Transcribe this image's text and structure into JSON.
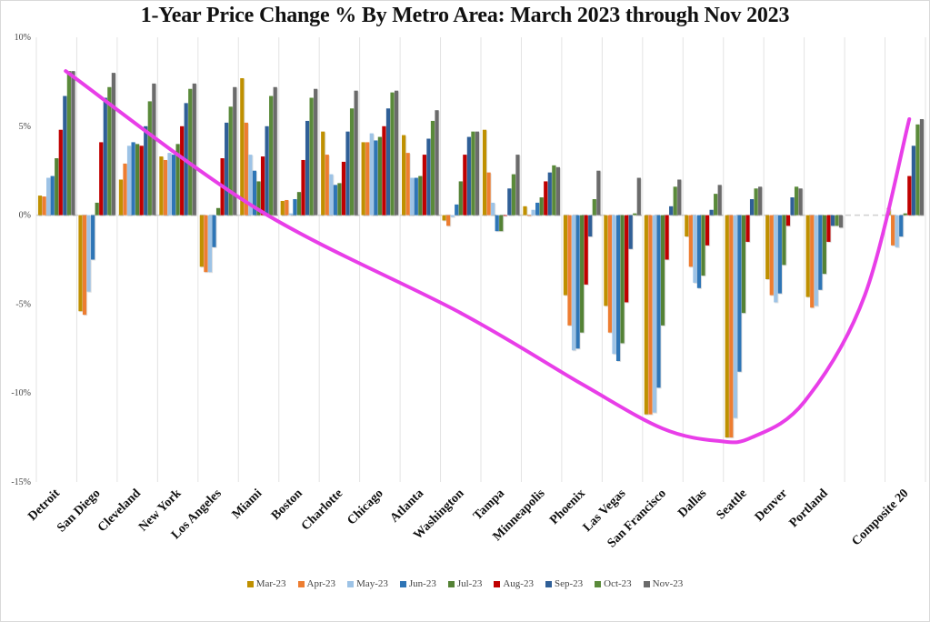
{
  "chart_data": {
    "type": "bar",
    "title": "1-Year Price Change % By Metro Area: March 2023 through Nov 2023",
    "xlabel": "",
    "ylabel": "",
    "ylim": [
      -15,
      10
    ],
    "yticks": [
      10,
      5,
      0,
      -5,
      -10,
      -15
    ],
    "ytick_labels": [
      "10%",
      "5%",
      "0%",
      "-5%",
      "-10%",
      "-15%"
    ],
    "grid": "vertical category separators",
    "legend_position": "bottom",
    "categories": [
      "Detroit",
      "San Diego",
      "Cleveland",
      "New York",
      "Los Angeles",
      "Miami",
      "Boston",
      "Charlotte",
      "Chicago",
      "Atlanta",
      "Washington",
      "Tampa",
      "Minneapolis",
      "Phoenix",
      "Las Vegas",
      "San Francisco",
      "Dallas",
      "Seattle",
      "Denver",
      "Portland",
      "",
      "Composite 20"
    ],
    "series": [
      {
        "name": "Mar-23",
        "color": "#bf9000",
        "values": [
          1.1,
          -5.4,
          2.0,
          3.3,
          -2.9,
          7.7,
          0.8,
          4.7,
          4.1,
          4.5,
          -0.3,
          4.8,
          0.5,
          -4.5,
          -5.1,
          -11.2,
          -1.2,
          -12.5,
          -3.6,
          -4.6,
          null,
          0.4
        ]
      },
      {
        "name": "Apr-23",
        "color": "#ed7d31",
        "values": [
          1.05,
          -5.6,
          2.9,
          3.1,
          -3.2,
          5.2,
          0.85,
          3.4,
          4.1,
          3.5,
          -0.6,
          2.4,
          0.0,
          -6.2,
          -6.6,
          -11.2,
          -2.9,
          -12.5,
          -4.5,
          -5.2,
          null,
          -1.7
        ]
      },
      {
        "name": "May-23",
        "color": "#9dc3e6",
        "values": [
          2.1,
          -4.3,
          3.9,
          3.5,
          -3.2,
          3.4,
          0.1,
          2.3,
          4.6,
          2.1,
          -0.1,
          0.7,
          0.3,
          -7.6,
          -7.8,
          -11.1,
          -3.8,
          -11.4,
          -4.9,
          -5.1,
          null,
          -1.8
        ]
      },
      {
        "name": "Jun-23",
        "color": "#2e75b6",
        "values": [
          2.2,
          -2.5,
          4.1,
          3.4,
          -1.8,
          2.5,
          0.9,
          1.7,
          4.2,
          2.1,
          0.6,
          -0.9,
          0.7,
          -7.5,
          -8.2,
          -9.7,
          -4.1,
          -8.8,
          -4.4,
          -4.2,
          null,
          -1.2
        ]
      },
      {
        "name": "Jul-23",
        "color": "#548235",
        "values": [
          3.2,
          0.7,
          4.0,
          4.0,
          0.4,
          1.9,
          1.3,
          1.8,
          4.4,
          2.2,
          1.9,
          -0.9,
          1.0,
          -6.6,
          -7.2,
          -6.2,
          -3.4,
          -5.5,
          -2.8,
          -3.3,
          null,
          0.1
        ]
      },
      {
        "name": "Aug-23",
        "color": "#c00000",
        "values": [
          4.8,
          4.1,
          3.9,
          5.0,
          3.2,
          3.3,
          3.1,
          3.0,
          5.0,
          3.4,
          3.4,
          0.0,
          1.9,
          -3.9,
          -4.9,
          -2.5,
          -1.7,
          -1.5,
          -0.6,
          -1.5,
          null,
          2.2
        ]
      },
      {
        "name": "Sep-23",
        "color": "#2f5f97",
        "values": [
          6.7,
          6.6,
          5.0,
          6.3,
          5.2,
          5.0,
          5.3,
          4.7,
          6.0,
          4.3,
          4.4,
          1.5,
          2.4,
          -1.2,
          -1.9,
          0.5,
          0.3,
          0.9,
          1.0,
          -0.6,
          null,
          3.9
        ]
      },
      {
        "name": "Oct-23",
        "color": "#5a8a3a",
        "values": [
          8.1,
          7.2,
          6.4,
          7.1,
          6.1,
          6.7,
          6.6,
          6.0,
          6.9,
          5.3,
          4.7,
          2.3,
          2.8,
          0.9,
          0.1,
          1.6,
          1.2,
          1.5,
          1.6,
          -0.6,
          null,
          5.1
        ]
      },
      {
        "name": "Nov-23",
        "color": "#6b6b6b",
        "values": [
          8.1,
          8.0,
          7.4,
          7.4,
          7.2,
          7.2,
          7.1,
          7.0,
          7.0,
          5.9,
          4.7,
          3.4,
          2.7,
          2.5,
          2.1,
          2.0,
          1.7,
          1.6,
          1.5,
          -0.7,
          null,
          5.4
        ]
      }
    ],
    "annotation": {
      "type": "hand-drawn curve",
      "color": "#e83ee8",
      "description": "magenta U-shaped trend curve from Detroit (~8%) down to a trough near Dallas/Seattle (~-12.7%) and back up to Composite 20 (~5.4%)",
      "points": [
        [
          0,
          8.1
        ],
        [
          5,
          0.3
        ],
        [
          10,
          -5.5
        ],
        [
          13,
          -9.5
        ],
        [
          15,
          -12.0
        ],
        [
          16.4,
          -12.7
        ],
        [
          17.2,
          -12.5
        ],
        [
          18.5,
          -10.5
        ],
        [
          20,
          -4.5
        ],
        [
          21.1,
          5.4
        ]
      ]
    }
  },
  "legend": {
    "items": [
      {
        "label": "Mar-23",
        "color": "#bf9000"
      },
      {
        "label": "Apr-23",
        "color": "#ed7d31"
      },
      {
        "label": "May-23",
        "color": "#9dc3e6"
      },
      {
        "label": "Jun-23",
        "color": "#2e75b6"
      },
      {
        "label": "Jul-23",
        "color": "#548235"
      },
      {
        "label": "Aug-23",
        "color": "#c00000"
      },
      {
        "label": "Sep-23",
        "color": "#2f5f97"
      },
      {
        "label": "Oct-23",
        "color": "#5a8a3a"
      },
      {
        "label": "Nov-23",
        "color": "#6b6b6b"
      }
    ]
  }
}
